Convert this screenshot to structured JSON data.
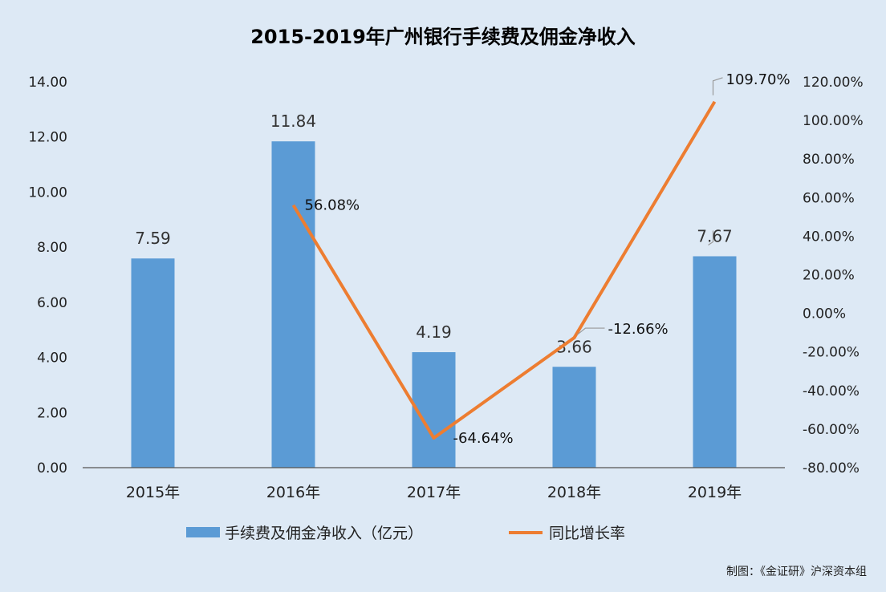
{
  "chart_data": {
    "type": "bar",
    "title": "2015-2019年广州银行手续费及佣金净收入",
    "categories": [
      "2015年",
      "2016年",
      "2017年",
      "2018年",
      "2019年"
    ],
    "series": [
      {
        "name": "手续费及佣金净收入（亿元）",
        "type": "bar",
        "axis": "left",
        "values": [
          7.59,
          11.84,
          4.19,
          3.66,
          7.67
        ],
        "labels": [
          "7.59",
          "11.84",
          "4.19",
          "3.66",
          "7.67"
        ],
        "color": "#5b9bd5"
      },
      {
        "name": "同比增长率",
        "type": "line",
        "axis": "right",
        "values": [
          null,
          56.08,
          -64.64,
          -12.66,
          109.7
        ],
        "labels": [
          "",
          "56.08%",
          "-64.64%",
          "-12.66%",
          "109.70%"
        ],
        "color": "#ed7d31"
      }
    ],
    "y_left": {
      "range": [
        0,
        14
      ],
      "ticks": [
        "0.00",
        "2.00",
        "4.00",
        "6.00",
        "8.00",
        "10.00",
        "12.00",
        "14.00"
      ]
    },
    "y_right": {
      "range": [
        -80,
        120
      ],
      "ticks": [
        "-80.00%",
        "-60.00%",
        "-40.00%",
        "-20.00%",
        "0.00%",
        "20.00%",
        "40.00%",
        "60.00%",
        "80.00%",
        "100.00%",
        "120.00%"
      ]
    },
    "grid": false,
    "legend_position": "bottom"
  },
  "credit": "制图：《金证研》沪深资本组",
  "colors": {
    "background": "#dde9f5",
    "bar": "#5b9bd5",
    "line": "#ed7d31"
  }
}
